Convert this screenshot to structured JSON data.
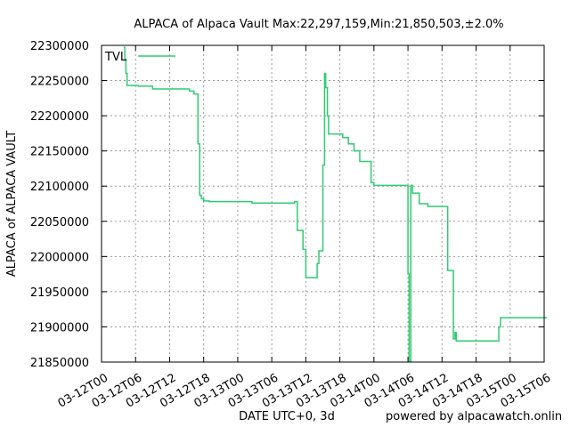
{
  "chart_data": {
    "type": "line",
    "title": "ALPACA of Alpaca Vault Max:22,297,159,Min:21,850,503,±2.0%",
    "xlabel": "DATE UTC+0, 3d",
    "ylabel": "ALPACA of ALPACA VAULT",
    "footer": "powered by alpacawatch.onlin",
    "ylim": [
      21850000,
      22300000
    ],
    "yticks": [
      "21850000",
      "21900000",
      "21950000",
      "22000000",
      "22050000",
      "22100000",
      "22150000",
      "22200000",
      "22250000",
      "22300000"
    ],
    "ytick_values": [
      21850000,
      21900000,
      21950000,
      22000000,
      22050000,
      22100000,
      22150000,
      22200000,
      22250000,
      22300000
    ],
    "xlim": [
      "2022-03-12T00:00",
      "2022-03-15T06:00"
    ],
    "xticks": [
      "03-12T00",
      "03-12T06",
      "03-12T12",
      "03-12T18",
      "03-13T00",
      "03-13T06",
      "03-13T12",
      "03-13T18",
      "03-14T00",
      "03-14T06",
      "03-14T12",
      "03-14T18",
      "03-15T00",
      "03-15T06"
    ],
    "xtick_hours": [
      0,
      6,
      12,
      18,
      24,
      30,
      36,
      42,
      48,
      54,
      60,
      66,
      72,
      78
    ],
    "grid": true,
    "legend_position": "top-left",
    "series": [
      {
        "name": "TVL",
        "color": "#2ecc71",
        "x_hours": [
          3.9,
          4.1,
          4.1,
          4.3,
          4.3,
          4.5,
          4.5,
          6.5,
          6.5,
          9.0,
          9.0,
          15.5,
          15.5,
          16.3,
          16.3,
          17.0,
          17.0,
          17.3,
          17.3,
          17.6,
          17.6,
          18.0,
          18.0,
          19.0,
          19.0,
          26.5,
          26.5,
          34.0,
          34.0,
          34.5,
          34.5,
          35.5,
          35.5,
          36.0,
          36.0,
          38.0,
          38.0,
          38.3,
          38.3,
          39.0,
          39.0,
          39.3,
          39.3,
          39.5,
          39.5,
          39.8,
          39.8,
          40.0,
          40.0,
          42.5,
          42.5,
          43.5,
          43.5,
          44.5,
          44.5,
          45.5,
          45.5,
          47.5,
          47.5,
          48.0,
          48.0,
          54.0,
          54.0,
          54.2,
          54.2,
          54.5,
          54.5,
          54.8,
          54.8,
          56.0,
          56.0,
          57.5,
          57.5,
          61.0,
          61.0,
          62.0,
          62.0,
          62.3,
          62.3,
          62.5,
          62.5,
          64.5,
          64.5,
          70.0,
          70.0,
          70.3,
          70.3,
          78.5
        ],
        "values": [
          22297159,
          22297159,
          22280000,
          22280000,
          22260000,
          22260000,
          22243000,
          22243000,
          22242000,
          22242000,
          22238000,
          22238000,
          22235000,
          22235000,
          22231000,
          22231000,
          22160000,
          22160000,
          22087000,
          22087000,
          22082000,
          22082000,
          22079000,
          22079000,
          22078000,
          22078000,
          22076000,
          22076000,
          22078000,
          22078000,
          22037000,
          22037000,
          22010000,
          22010000,
          21970000,
          21970000,
          21990000,
          21990000,
          22008000,
          22008000,
          22130000,
          22130000,
          22260000,
          22260000,
          22240000,
          22240000,
          22200000,
          22200000,
          22174000,
          22174000,
          22169000,
          22169000,
          22160000,
          22160000,
          22150000,
          22150000,
          22135000,
          22135000,
          22105000,
          22105000,
          22101000,
          22101000,
          21975000,
          21975000,
          21850503,
          21850503,
          22101000,
          22101000,
          22090000,
          22090000,
          22075000,
          22075000,
          22071000,
          22071000,
          21980000,
          21980000,
          21883000,
          21883000,
          21892000,
          21892000,
          21880000,
          21880000,
          21880000,
          21880000,
          21900000,
          21900000,
          21913000,
          21913000
        ]
      }
    ]
  }
}
